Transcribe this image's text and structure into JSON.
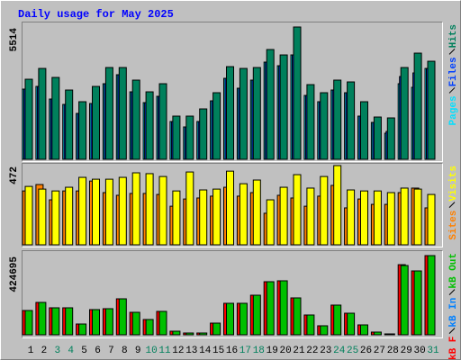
{
  "chart_data": [
    {
      "type": "bar",
      "title": "Daily usage for May 2025",
      "ylim": [
        0,
        5514
      ],
      "yticks": [
        5514
      ],
      "series": [
        {
          "name": "Hits",
          "color": "#00805c",
          "values": [
            3337,
            3787,
            3412,
            2887,
            2400,
            3037,
            3825,
            3825,
            3300,
            2812,
            3150,
            1800,
            1800,
            2100,
            2775,
            3862,
            3787,
            3825,
            4575,
            4350,
            5514,
            3112,
            2775,
            3300,
            3225,
            2400,
            1762,
            1725,
            3825,
            4425,
            4087
          ]
        },
        {
          "name": "Files",
          "color": "#0040ff",
          "values": [
            2925,
            3037,
            2512,
            2287,
            1912,
            2325,
            3150,
            3525,
            2812,
            2362,
            2625,
            1575,
            1350,
            1575,
            2437,
            3375,
            2962,
            3300,
            4050,
            3900,
            4350,
            2662,
            2400,
            2887,
            2775,
            1800,
            1537,
            1162,
            3450,
            3600,
            3787
          ]
        },
        {
          "name": "Pages",
          "color": "#00e0ff",
          "values": [
            2925,
            3037,
            2512,
            2287,
            1912,
            2325,
            3150,
            3525,
            2812,
            2362,
            2625,
            1575,
            1350,
            1575,
            2437,
            3375,
            2962,
            3300,
            4050,
            3900,
            4350,
            2662,
            2400,
            2887,
            2775,
            1800,
            1537,
            1087,
            3150,
            3000,
            3787
          ]
        }
      ]
    },
    {
      "type": "bar",
      "ylim": [
        0,
        472
      ],
      "yticks": [
        472
      ],
      "series": [
        {
          "name": "Visits",
          "color": "#ffff00",
          "values": [
            348,
            332,
            321,
            343,
            402,
            391,
            391,
            402,
            429,
            424,
            407,
            321,
            434,
            327,
            332,
            439,
            364,
            386,
            268,
            343,
            418,
            338,
            407,
            472,
            327,
            321,
            321,
            311,
            338,
            332,
            300
          ]
        },
        {
          "name": "Sites",
          "color": "#ff8000",
          "values": [
            321,
            359,
            268,
            321,
            321,
            380,
            311,
            295,
            306,
            306,
            300,
            230,
            273,
            279,
            290,
            343,
            290,
            311,
            188,
            295,
            279,
            230,
            290,
            354,
            220,
            273,
            241,
            241,
            311,
            338,
            220
          ]
        }
      ]
    },
    {
      "type": "bar",
      "ylim": [
        0,
        424695
      ],
      "yticks": [
        424695
      ],
      "categories": [
        "1",
        "2",
        "3",
        "4",
        "5",
        "6",
        "7",
        "8",
        "9",
        "10",
        "11",
        "12",
        "13",
        "14",
        "15",
        "16",
        "17",
        "18",
        "19",
        "20",
        "21",
        "22",
        "23",
        "24",
        "25",
        "26",
        "27",
        "28",
        "29",
        "30",
        "31"
      ],
      "category_colors": [
        "#000000",
        "#000000",
        "#00805c",
        "#00805c",
        "#000000",
        "#000000",
        "#000000",
        "#000000",
        "#000000",
        "#00805c",
        "#00805c",
        "#000000",
        "#000000",
        "#000000",
        "#000000",
        "#000000",
        "#00805c",
        "#00805c",
        "#000000",
        "#000000",
        "#000000",
        "#000000",
        "#000000",
        "#00805c",
        "#00805c",
        "#000000",
        "#000000",
        "#000000",
        "#000000",
        "#000000",
        "#00805c"
      ],
      "series": [
        {
          "name": "kB F",
          "color": "#ff0000",
          "values": [
            130300,
            173700,
            144800,
            144800,
            57900,
            135100,
            140000,
            193000,
            120600,
            82000,
            125500,
            19300,
            9650,
            9650,
            62700,
            168900,
            168900,
            212300,
            284700,
            289600,
            197900,
            106200,
            48300,
            159300,
            115800,
            53100,
            14500,
            4800,
            376000,
            342600,
            424695
          ]
        },
        {
          "name": "kB In",
          "color": "#0080ff",
          "values": [
            0,
            0,
            0,
            0,
            0,
            0,
            0,
            0,
            0,
            0,
            0,
            0,
            0,
            0,
            0,
            0,
            0,
            0,
            0,
            0,
            0,
            0,
            0,
            0,
            0,
            0,
            0,
            0,
            0,
            0,
            0
          ]
        },
        {
          "name": "kB Out",
          "color": "#00c000",
          "values": [
            130300,
            173700,
            144800,
            144800,
            57900,
            135100,
            140000,
            193000,
            120600,
            82000,
            125500,
            19300,
            9650,
            9650,
            62700,
            168900,
            168900,
            212300,
            284700,
            289600,
            197900,
            106200,
            48300,
            159300,
            115800,
            53100,
            14500,
            4800,
            371600,
            342600,
            424695
          ]
        }
      ]
    }
  ]
}
